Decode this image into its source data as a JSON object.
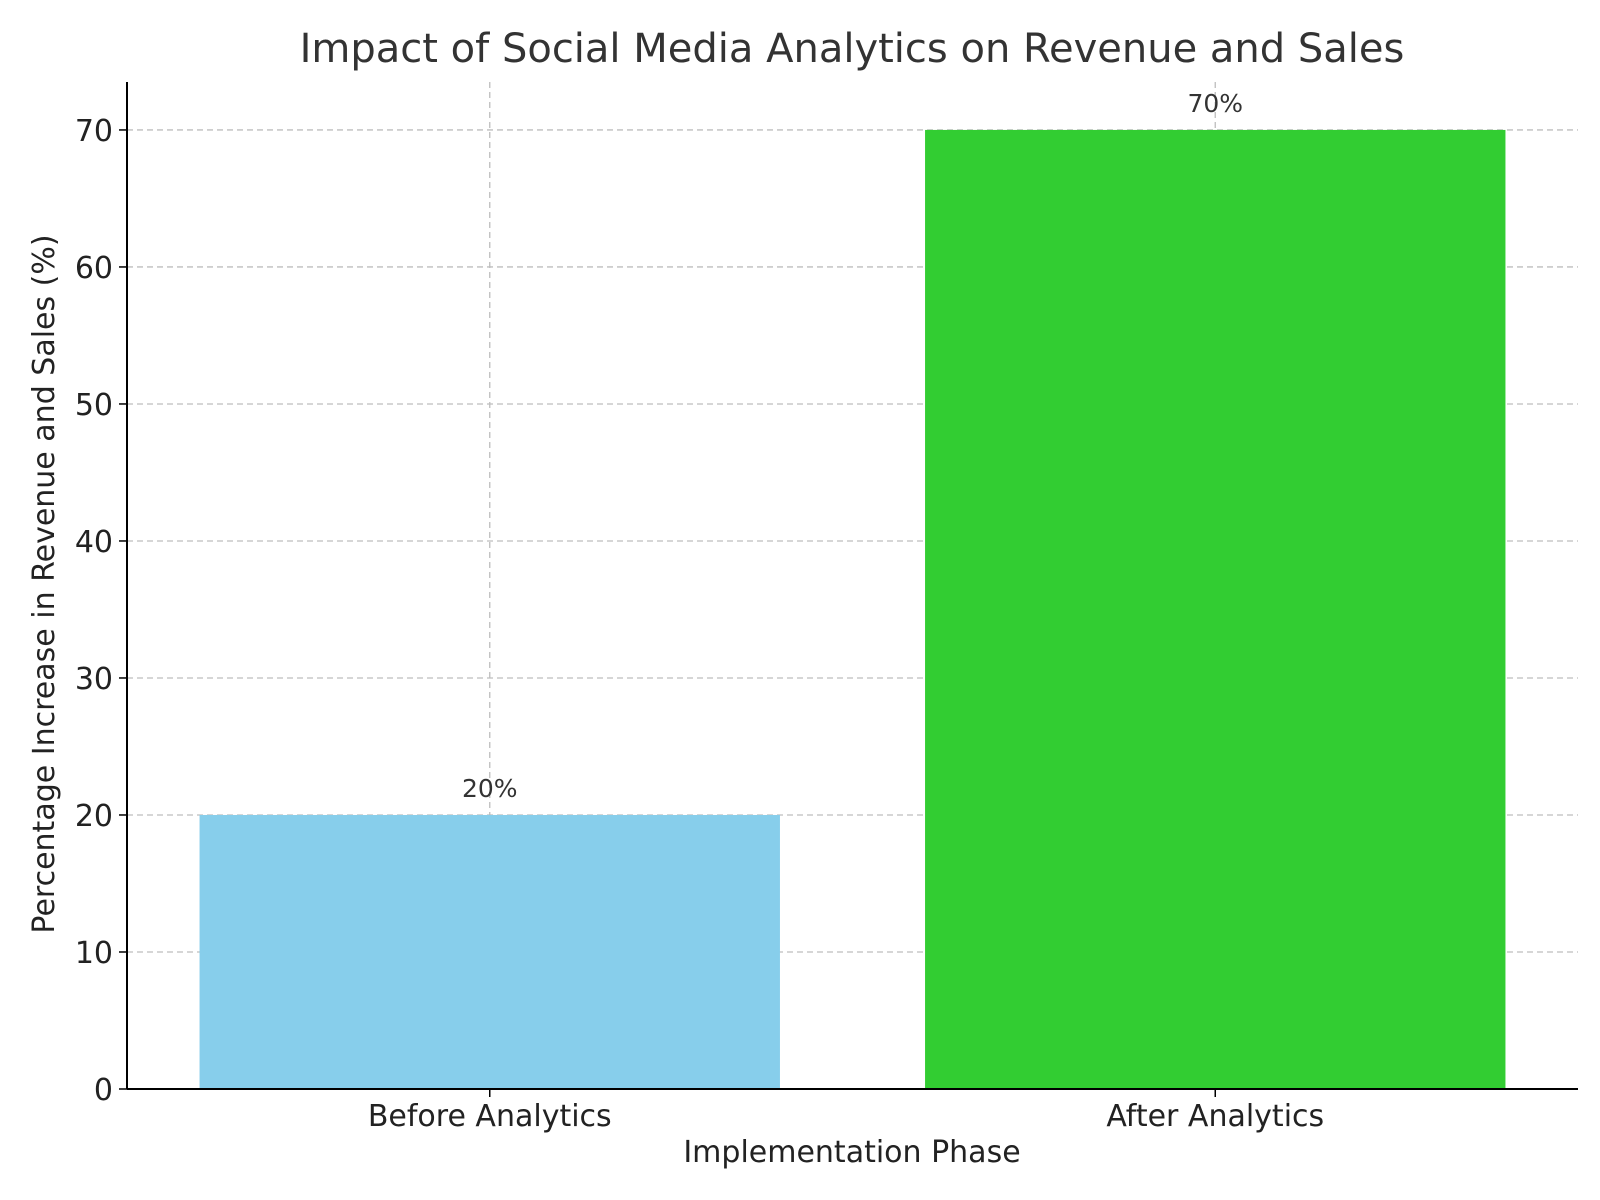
{
  "chart_data": {
    "type": "bar",
    "title": "Impact of Social Media Analytics on Revenue and Sales",
    "xlabel": "Implementation Phase",
    "ylabel": "Percentage Increase in Revenue and Sales (%)",
    "categories": [
      "Before Analytics",
      "After Analytics"
    ],
    "values": [
      20,
      70
    ],
    "value_labels": [
      "20%",
      "70%"
    ],
    "colors": [
      "#87ceeb",
      "#32cd32"
    ],
    "ylim": [
      0,
      73.5
    ],
    "yticks": [
      0,
      10,
      20,
      30,
      40,
      50,
      60,
      70
    ],
    "grid": true
  }
}
